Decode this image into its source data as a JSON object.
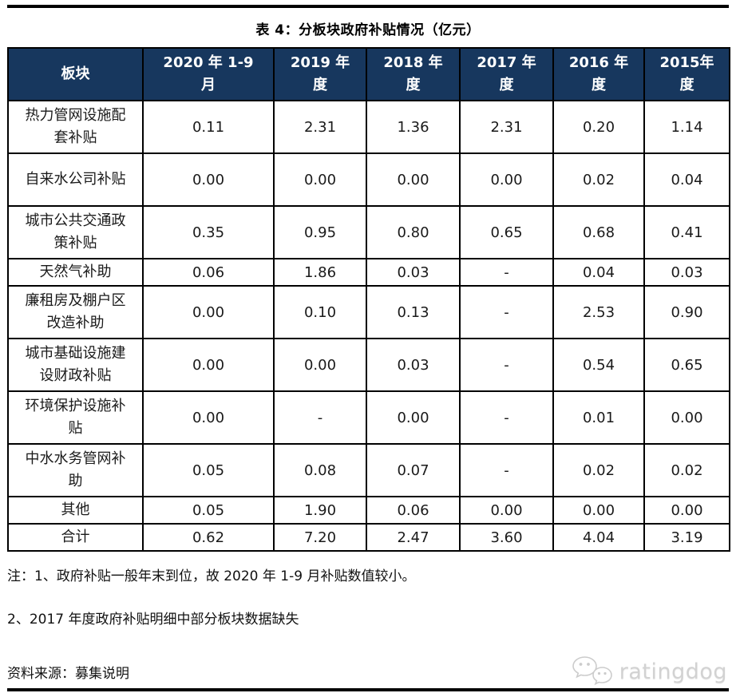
{
  "title": "表 4：分板块政府补贴情况（亿元）",
  "table": {
    "columns": [
      {
        "line1": "板块",
        "line2": ""
      },
      {
        "line1": "2020 年 1-9",
        "line2": "月"
      },
      {
        "line1": "2019 年",
        "line2": "度"
      },
      {
        "line1": "2018 年",
        "line2": "度"
      },
      {
        "line1": "2017 年",
        "line2": "度"
      },
      {
        "line1": "2016 年",
        "line2": "度"
      },
      {
        "line1": "2015年",
        "line2": "度"
      }
    ],
    "rows": [
      {
        "label": "热力管网设施配套补贴",
        "values": [
          "0.11",
          "2.31",
          "1.36",
          "2.31",
          "0.20",
          "1.14"
        ]
      },
      {
        "label": "自来水公司补贴",
        "values": [
          "0.00",
          "0.00",
          "0.00",
          "0.00",
          "0.02",
          "0.04"
        ]
      },
      {
        "label": "城市公共交通政策补贴",
        "values": [
          "0.35",
          "0.95",
          "0.80",
          "0.65",
          "0.68",
          "0.41"
        ]
      },
      {
        "label": "天然气补助",
        "values": [
          "0.06",
          "1.86",
          "0.03",
          "-",
          "0.04",
          "0.03"
        ]
      },
      {
        "label": "廉租房及棚户区改造补助",
        "values": [
          "0.00",
          "0.10",
          "0.13",
          "-",
          "2.53",
          "0.90"
        ]
      },
      {
        "label": "城市基础设施建设财政补贴",
        "values": [
          "0.00",
          "0.00",
          "0.03",
          "-",
          "0.54",
          "0.65"
        ]
      },
      {
        "label": "环境保护设施补贴",
        "values": [
          "0.00",
          "-",
          "0.00",
          "-",
          "0.01",
          "0.00"
        ]
      },
      {
        "label": "中水水务管网补助",
        "values": [
          "0.05",
          "0.08",
          "0.07",
          "-",
          "0.02",
          "0.02"
        ]
      },
      {
        "label": "其他",
        "values": [
          "0.05",
          "1.90",
          "0.06",
          "0.00",
          "0.00",
          "0.00"
        ]
      },
      {
        "label": "合计",
        "values": [
          "0.62",
          "7.20",
          "2.47",
          "3.60",
          "4.04",
          "3.19"
        ]
      }
    ]
  },
  "notes": {
    "note1": "注：1、政府补贴一般年末到位，故 2020 年 1-9 月补贴数值较小。",
    "note2": "2、2017 年度政府补贴明细中部分板块数据缺失",
    "source": "资料来源：募集说明"
  },
  "logo": {
    "name": "ratingdog",
    "icon": "wechat-chat-bubbles-icon"
  },
  "colors": {
    "header_bg": "#17375E",
    "header_text": "#FFFFFF",
    "border": "#000000",
    "watermark_text": "#D2D2D2"
  }
}
